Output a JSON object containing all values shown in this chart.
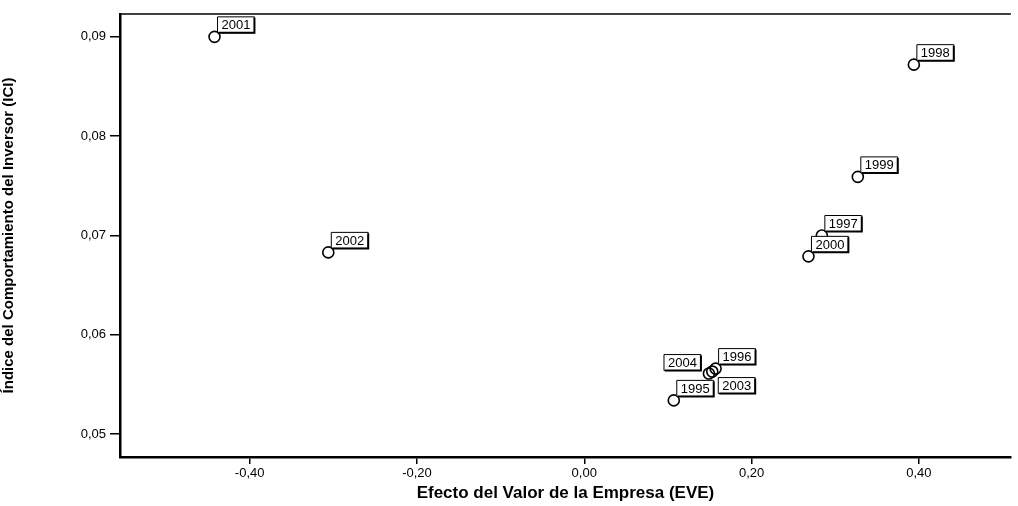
{
  "chart_data": {
    "type": "scatter",
    "xlabel": "Efecto del Valor de la Empresa (EVE)",
    "ylabel": "Índice del Comportamiento del Inversor (ICI)",
    "x": [
      0.107,
      0.157,
      0.284,
      0.394,
      0.327,
      0.268,
      -0.442,
      -0.306,
      0.153,
      0.149
    ],
    "series": [
      {
        "color": "#000000",
        "values": [
          0.0534,
          0.0566,
          0.07,
          0.0872,
          0.0759,
          0.0679,
          0.09,
          0.0683,
          0.0563,
          0.0561
        ]
      }
    ],
    "annotations": [
      {
        "text": "1995",
        "x": 0.107,
        "y": 0.0534
      },
      {
        "text": "1996",
        "x": 0.157,
        "y": 0.0566
      },
      {
        "text": "1997",
        "x": 0.284,
        "y": 0.07
      },
      {
        "text": "1998",
        "x": 0.394,
        "y": 0.0872
      },
      {
        "text": "1999",
        "x": 0.327,
        "y": 0.0759
      },
      {
        "text": "2000",
        "x": 0.268,
        "y": 0.0679
      },
      {
        "text": "2001",
        "x": -0.442,
        "y": 0.09
      },
      {
        "text": "2002",
        "x": -0.306,
        "y": 0.0683
      },
      {
        "text": "2003",
        "x": 0.153,
        "y": 0.0563
      },
      {
        "text": "2004",
        "x": 0.149,
        "y": 0.0561
      }
    ],
    "xlim": [
      -0.555,
      0.51
    ],
    "xticks": [
      {
        "value": -0.4,
        "label": "-0,40"
      },
      {
        "value": -0.2,
        "label": "-0,20"
      },
      {
        "value": 0,
        "label": "0,00"
      },
      {
        "value": 0.2,
        "label": "0,20"
      },
      {
        "value": 0.4,
        "label": "0,40"
      }
    ],
    "ylim": [
      0.0477,
      0.0923
    ],
    "yticks": [
      {
        "value": 0.05,
        "label": "0,05"
      },
      {
        "value": 0.06,
        "label": "0,06"
      },
      {
        "value": 0.07,
        "label": "0,07"
      },
      {
        "value": 0.08,
        "label": "0,08"
      },
      {
        "value": 0.09,
        "label": "0,09"
      }
    ],
    "marker": "circle",
    "grid": false,
    "legend": false
  }
}
